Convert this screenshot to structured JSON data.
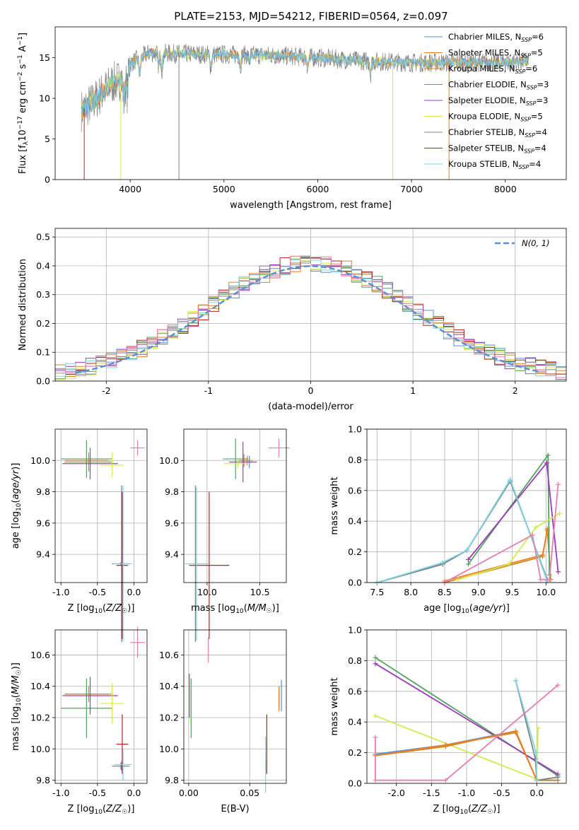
{
  "title": "PLATE=2153, MJD=54212, FIBERID=0564, z=0.097",
  "colors": {
    "Chabrier MILES": "#5b8fd4",
    "Salpeter MILES": "#ef7f22",
    "Kroupa MILES": "#c8891f",
    "Chabrier ELODIE": "#54a364",
    "Salpeter ELODIE": "#9b3cb8",
    "Kroupa ELODIE": "#d5ea4d",
    "Chabrier STELIB": "#808080",
    "Salpeter STELIB": "#b22222",
    "Kroupa STELIB": "#7fd3e0",
    "Normal": "#5b8fd4",
    "extra_pink": "#e57fb1"
  },
  "chart_data": [
    {
      "id": "spectrum",
      "type": "line",
      "title": "PLATE=2153, MJD=54212, FIBERID=0564, z=0.097",
      "xlabel": "wavelength [Angstrom, rest frame]",
      "ylabel": "Flux [f_λ 10^-17 erg cm^-2 s^-1 A^-1]",
      "xlim": [
        3200,
        8650
      ],
      "ylim": [
        0,
        18.8
      ],
      "xticks": [
        4000,
        5000,
        6000,
        7000,
        8000
      ],
      "yticks": [
        0,
        5,
        10,
        15
      ],
      "legend_position": "top-right",
      "legend": [
        {
          "name": "Chabrier MILES",
          "nssp": "6"
        },
        {
          "name": "Salpeter MILES",
          "nssp": "5"
        },
        {
          "name": "Kroupa MILES",
          "nssp": "6"
        },
        {
          "name": "Chabrier ELODIE",
          "nssp": "3"
        },
        {
          "name": "Salpeter ELODIE",
          "nssp": "3"
        },
        {
          "name": "Kroupa ELODIE",
          "nssp": "5"
        },
        {
          "name": "Chabrier STELIB",
          "nssp": "4"
        },
        {
          "name": "Salpeter STELIB",
          "nssp": "4"
        },
        {
          "name": "Kroupa STELIB",
          "nssp": "4"
        }
      ],
      "continuum": [
        [
          3480,
          8.5
        ],
        [
          3600,
          9.5
        ],
        [
          3800,
          11.8
        ],
        [
          3950,
          12.5
        ],
        [
          4000,
          14.3
        ],
        [
          4200,
          15.6
        ],
        [
          4500,
          15.5
        ],
        [
          4800,
          15.4
        ],
        [
          5000,
          15.4
        ],
        [
          5500,
          15.3
        ],
        [
          6000,
          15.0
        ],
        [
          6500,
          14.6
        ],
        [
          7000,
          14.4
        ],
        [
          7500,
          14.4
        ],
        [
          8000,
          14.4
        ],
        [
          8250,
          14.6
        ]
      ]
    },
    {
      "id": "residuals",
      "type": "histogram",
      "xlabel": "(data-model)/error",
      "ylabel": "Normed distribution",
      "xlim": [
        -2.5,
        2.5
      ],
      "ylim": [
        0,
        0.53
      ],
      "xticks": [
        -2,
        -1,
        0,
        1,
        2
      ],
      "yticks": [
        0.0,
        0.1,
        0.2,
        0.3,
        0.4,
        0.5
      ],
      "grid": true,
      "legend_position": "top-right",
      "normal_label": "N(0, 1)",
      "bin_width": 0.1
    },
    {
      "id": "age_vs_Z",
      "type": "scatter",
      "xlabel": "Z [log10(Z/Z☉)]",
      "ylabel": "age  [log10(age/yr)]",
      "xlim": [
        -1.08,
        0.18
      ],
      "ylim": [
        9.22,
        10.2
      ],
      "xticks": [
        -1.0,
        -0.5,
        0.0
      ],
      "yticks": [
        9.4,
        9.6,
        9.8,
        10.0
      ],
      "points": [
        {
          "model": "Chabrier MILES",
          "x": -0.18,
          "y": 9.34,
          "xe": 0.12,
          "ye": 0.01
        },
        {
          "model": "Salpeter MILES",
          "x": -0.65,
          "y": 10.0,
          "xe": 0.3,
          "ye": 0.01
        },
        {
          "model": "Kroupa MILES",
          "x": -0.62,
          "y": 9.99,
          "xe": 0.33,
          "ye": 0.06
        },
        {
          "model": "Chabrier ELODIE",
          "x": -0.65,
          "y": 10.01,
          "xe": 0.35,
          "ye": 0.12
        },
        {
          "model": "Salpeter ELODIE",
          "x": -0.6,
          "y": 9.98,
          "xe": 0.38,
          "ye": 0.1
        },
        {
          "model": "Kroupa ELODIE",
          "x": -0.3,
          "y": 9.97,
          "xe": 0.16,
          "ye": 0.08
        },
        {
          "model": "Chabrier STELIB",
          "x": -0.17,
          "y": 9.34,
          "xe": 0.05,
          "ye": 0.5
        },
        {
          "model": "Salpeter STELIB",
          "x": -0.16,
          "y": 9.33,
          "xe": 0.08,
          "ye": 0.47
        },
        {
          "model": "Kroupa STELIB",
          "x": -0.15,
          "y": 9.34,
          "xe": 0.12,
          "ye": 0.5
        },
        {
          "model": "extra_pink",
          "x": 0.05,
          "y": 10.08,
          "xe": 0.1,
          "ye": 0.05
        }
      ]
    },
    {
      "id": "age_vs_mass",
      "type": "scatter",
      "xlabel": "mass [log10(M/M☉)]",
      "ylabel": "",
      "xlim": [
        9.78,
        10.75
      ],
      "ylim": [
        9.22,
        10.2
      ],
      "xticks": [
        10.0,
        10.5
      ],
      "yticks": [
        9.4,
        9.6,
        9.8,
        10.0
      ],
      "points": [
        {
          "model": "Chabrier MILES",
          "x": 10.4,
          "y": 9.99,
          "xe": 0.04,
          "ye": 0.04
        },
        {
          "model": "Salpeter MILES",
          "x": 10.38,
          "y": 10.0,
          "xe": 0.05,
          "ye": 0.03
        },
        {
          "model": "Kroupa MILES",
          "x": 10.35,
          "y": 10.0,
          "xe": 0.05,
          "ye": 0.04
        },
        {
          "model": "Chabrier ELODIE",
          "x": 10.27,
          "y": 10.01,
          "xe": 0.12,
          "ye": 0.13
        },
        {
          "model": "Salpeter ELODIE",
          "x": 10.34,
          "y": 9.99,
          "xe": 0.13,
          "ye": 0.13
        },
        {
          "model": "Kroupa ELODIE",
          "x": 10.29,
          "y": 9.98,
          "xe": 0.13,
          "ye": 0.03
        },
        {
          "model": "Chabrier STELIB",
          "x": 9.89,
          "y": 9.34,
          "xe": 0.02,
          "ye": 0.5
        },
        {
          "model": "Salpeter STELIB",
          "x": 10.02,
          "y": 9.33,
          "xe": 0.19,
          "ye": 0.47
        },
        {
          "model": "Kroupa STELIB",
          "x": 9.9,
          "y": 9.34,
          "xe": 0.11,
          "ye": 0.49
        },
        {
          "model": "extra_pink",
          "x": 10.68,
          "y": 10.08,
          "xe": 0.1,
          "ye": 0.06
        }
      ]
    },
    {
      "id": "weight_vs_age",
      "type": "line",
      "xlabel": "age  [log10(age/yr)]",
      "ylabel": "mass weight",
      "xlim": [
        7.35,
        10.3
      ],
      "ylim": [
        0,
        1.0
      ],
      "xticks": [
        7.5,
        8.0,
        8.5,
        9.0,
        9.5,
        10.0
      ],
      "yticks": [
        0.0,
        0.2,
        0.4,
        0.6,
        0.8,
        1.0
      ],
      "grid": true,
      "series": [
        {
          "model": "Chabrier MILES",
          "points": [
            [
              7.5,
              0.0
            ],
            [
              8.47,
              0.12
            ],
            [
              8.83,
              0.21
            ],
            [
              9.47,
              0.67
            ],
            [
              10.02,
              0.01
            ]
          ]
        },
        {
          "model": "Kroupa MILES",
          "points": [
            [
              8.5,
              0.0
            ],
            [
              9.95,
              0.17
            ],
            [
              10.02,
              0.35
            ],
            [
              10.07,
              0.02
            ]
          ]
        },
        {
          "model": "Salpeter MILES",
          "points": [
            [
              8.5,
              0.01
            ],
            [
              9.95,
              0.18
            ],
            [
              10.02,
              0.34
            ]
          ]
        },
        {
          "model": "Chabrier ELODIE",
          "points": [
            [
              8.85,
              0.12
            ],
            [
              10.03,
              0.83
            ],
            [
              10.05,
              0.05
            ]
          ]
        },
        {
          "model": "Salpeter ELODIE",
          "points": [
            [
              8.85,
              0.15
            ],
            [
              10.01,
              0.78
            ],
            [
              10.18,
              0.07
            ]
          ]
        },
        {
          "model": "Kroupa ELODIE",
          "points": [
            [
              8.7,
              0.02
            ],
            [
              9.45,
              0.12
            ],
            [
              9.85,
              0.36
            ],
            [
              10.2,
              0.45
            ]
          ]
        },
        {
          "model": "Chabrier STELIB",
          "points": [
            [
              7.5,
              0.0
            ],
            [
              8.47,
              0.12
            ],
            [
              8.83,
              0.21
            ],
            [
              9.47,
              0.66
            ],
            [
              10.02,
              0.02
            ]
          ]
        },
        {
          "model": "Kroupa STELIB",
          "points": [
            [
              7.5,
              0.0
            ],
            [
              8.47,
              0.13
            ],
            [
              8.83,
              0.21
            ],
            [
              9.47,
              0.67
            ],
            [
              10.02,
              0.01
            ]
          ]
        },
        {
          "model": "extra_pink",
          "points": [
            [
              8.5,
              0.0
            ],
            [
              9.8,
              0.31
            ],
            [
              9.92,
              0.02
            ],
            [
              10.05,
              0.02
            ],
            [
              10.18,
              0.64
            ]
          ]
        }
      ]
    },
    {
      "id": "mass_vs_Z",
      "type": "scatter",
      "xlabel": "Z [log10(Z/Z☉)]",
      "ylabel": "mass [log10(M/M☉)]",
      "xlim": [
        -1.08,
        0.18
      ],
      "ylim": [
        9.78,
        10.76
      ],
      "xticks": [
        -1.0,
        -0.5,
        0.0
      ],
      "yticks": [
        9.8,
        10.0,
        10.2,
        10.4,
        10.6
      ],
      "points": [
        {
          "model": "Chabrier MILES",
          "x": -0.18,
          "y": 9.89,
          "xe": 0.12,
          "ye": 0.02
        },
        {
          "model": "Salpeter MILES",
          "x": -0.65,
          "y": 10.35,
          "xe": 0.3,
          "ye": 0.04
        },
        {
          "model": "Kroupa MILES",
          "x": -0.62,
          "y": 10.35,
          "xe": 0.33,
          "ye": 0.05
        },
        {
          "model": "Chabrier ELODIE",
          "x": -0.65,
          "y": 10.26,
          "xe": 0.35,
          "ye": 0.19
        },
        {
          "model": "Salpeter ELODIE",
          "x": -0.6,
          "y": 10.34,
          "xe": 0.38,
          "ye": 0.12
        },
        {
          "model": "Kroupa ELODIE",
          "x": -0.3,
          "y": 10.29,
          "xe": 0.16,
          "ye": 0.13
        },
        {
          "model": "Chabrier STELIB",
          "x": -0.17,
          "y": 9.89,
          "xe": 0.05,
          "ye": 0.03
        },
        {
          "model": "Salpeter STELIB",
          "x": -0.16,
          "y": 10.03,
          "xe": 0.08,
          "ye": 0.19
        },
        {
          "model": "Kroupa STELIB",
          "x": -0.15,
          "y": 9.9,
          "xe": 0.12,
          "ye": 0.1
        },
        {
          "model": "extra_pink",
          "x": 0.05,
          "y": 10.68,
          "xe": 0.1,
          "ye": 0.1
        }
      ]
    },
    {
      "id": "mass_vs_EBV",
      "type": "scatter",
      "xlabel": "E(B-V)",
      "ylabel": "",
      "xlim": [
        -0.004,
        0.08
      ],
      "ylim": [
        9.78,
        10.76
      ],
      "xticks": [
        0.0,
        0.05
      ],
      "yticks": [
        9.8,
        10.0,
        10.2,
        10.4,
        10.6
      ],
      "points": [
        {
          "model": "Chabrier MILES",
          "x": 0.076,
          "y": 10.34,
          "ye": 0.1
        },
        {
          "model": "Salpeter MILES",
          "x": 0.074,
          "y": 10.32,
          "ye": 0.08
        },
        {
          "model": "Kroupa MILES",
          "x": 0.074,
          "y": 10.33,
          "ye": 0.07
        },
        {
          "model": "Chabrier ELODIE",
          "x": 0.002,
          "y": 10.26,
          "ye": 0.19
        },
        {
          "model": "Salpeter ELODIE",
          "x": 0.0005,
          "y": 10.34,
          "ye": 0.14
        },
        {
          "model": "Kroupa ELODIE",
          "x": 0.0015,
          "y": 10.29,
          "ye": 0.13
        },
        {
          "model": "Chabrier STELIB",
          "x": 0.063,
          "y": 9.89,
          "ye": 0.04
        },
        {
          "model": "Salpeter STELIB",
          "x": 0.064,
          "y": 10.03,
          "ye": 0.19
        },
        {
          "model": "Kroupa STELIB",
          "x": 0.063,
          "y": 9.9,
          "ye": 0.18
        },
        {
          "model": "extra_pink",
          "x": 0.016,
          "y": 10.63,
          "ye": 0.08
        }
      ]
    },
    {
      "id": "weight_vs_Z",
      "type": "line",
      "xlabel": "Z [log10(Z/Z☉)]",
      "ylabel": "mass weight",
      "xlim": [
        -2.42,
        0.42
      ],
      "ylim": [
        0,
        1.0
      ],
      "xticks": [
        -2.0,
        -1.5,
        -1.0,
        -0.5,
        0.0
      ],
      "yticks": [
        0.0,
        0.2,
        0.4,
        0.6,
        0.8,
        1.0
      ],
      "grid": true,
      "series": [
        {
          "model": "Chabrier ELODIE",
          "points": [
            [
              -2.3,
              0.82
            ],
            [
              0.3,
              0.05
            ]
          ]
        },
        {
          "model": "Salpeter ELODIE",
          "points": [
            [
              -2.3,
              0.78
            ],
            [
              0.3,
              0.06
            ]
          ]
        },
        {
          "model": "Kroupa ELODIE",
          "points": [
            [
              -2.3,
              0.44
            ],
            [
              -0.01,
              0.03
            ],
            [
              0.02,
              0.36
            ]
          ]
        },
        {
          "model": "Chabrier MILES",
          "points": [
            [
              -2.3,
              0.19
            ],
            [
              -1.3,
              0.25
            ],
            [
              -0.3,
              0.34
            ],
            [
              0.0,
              0.02
            ],
            [
              0.3,
              0.02
            ]
          ]
        },
        {
          "model": "Kroupa MILES",
          "points": [
            [
              -2.3,
              0.18
            ],
            [
              -1.3,
              0.24
            ],
            [
              -0.3,
              0.34
            ],
            [
              0.0,
              0.02
            ],
            [
              0.3,
              0.02
            ]
          ]
        },
        {
          "model": "Salpeter MILES",
          "points": [
            [
              -2.3,
              0.18
            ],
            [
              -1.3,
              0.25
            ],
            [
              -0.3,
              0.33
            ],
            [
              0.0,
              0.02
            ]
          ]
        },
        {
          "model": "Chabrier STELIB",
          "points": [
            [
              -0.3,
              0.67
            ],
            [
              -0.02,
              0.16
            ],
            [
              0.0,
              0.02
            ],
            [
              0.3,
              0.04
            ]
          ]
        },
        {
          "model": "Kroupa STELIB",
          "points": [
            [
              -0.3,
              0.67
            ],
            [
              -0.01,
              0.2
            ],
            [
              0.0,
              0.02
            ]
          ]
        },
        {
          "model": "extra_pink",
          "points": [
            [
              -2.3,
              0.3
            ],
            [
              -2.3,
              0.02
            ],
            [
              -1.3,
              0.02
            ],
            [
              0.3,
              0.64
            ]
          ]
        }
      ]
    }
  ]
}
